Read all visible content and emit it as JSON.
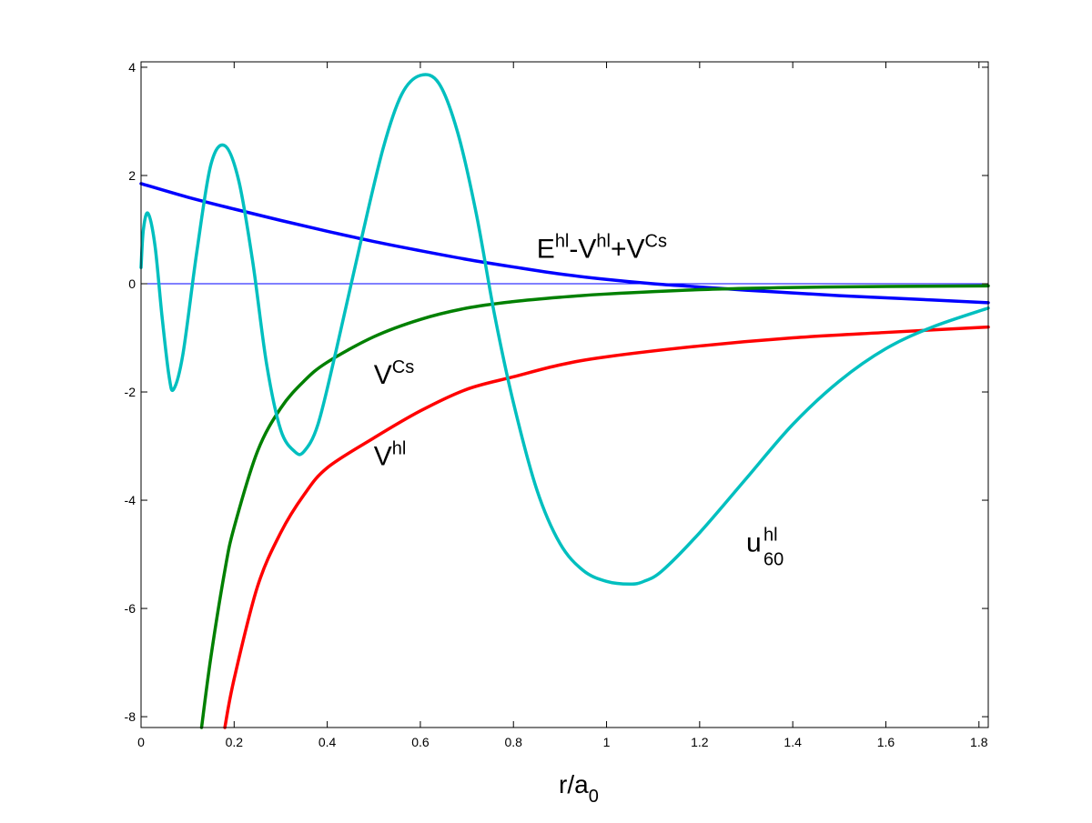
{
  "chart_data": {
    "type": "line",
    "title": "",
    "xlabel": "r/a",
    "xlabel_sub": "0",
    "ylabel": "",
    "xlim": [
      0,
      1.82
    ],
    "ylim": [
      -8.2,
      4.1
    ],
    "xticks": [
      0,
      0.2,
      0.4,
      0.6,
      0.8,
      1,
      1.2,
      1.4,
      1.6,
      1.8
    ],
    "xtick_labels": [
      "0",
      "0.2",
      "0.4",
      "0.6",
      "0.8",
      "1",
      "1.2",
      "1.4",
      "1.6",
      "1.8"
    ],
    "yticks": [
      -8,
      -6,
      -4,
      -2,
      0,
      2,
      4
    ],
    "ytick_labels": [
      "-8",
      "-6",
      "-4",
      "-2",
      "0",
      "2",
      "4"
    ],
    "grid": false,
    "legend": "none",
    "zero_line": {
      "y": 0,
      "color": "#0000ff"
    },
    "series": [
      {
        "key": "E_minus_V_plus_VCs",
        "color": "#0000ff",
        "x": [
          0,
          0.1,
          0.2,
          0.3,
          0.4,
          0.5,
          0.6,
          0.7,
          0.8,
          0.9,
          1.0,
          1.1,
          1.2,
          1.3,
          1.4,
          1.5,
          1.6,
          1.7,
          1.82
        ],
        "y": [
          1.85,
          1.6,
          1.38,
          1.17,
          0.97,
          0.78,
          0.61,
          0.45,
          0.31,
          0.18,
          0.08,
          0.0,
          -0.06,
          -0.12,
          -0.17,
          -0.22,
          -0.26,
          -0.3,
          -0.35
        ]
      },
      {
        "key": "V_Cs",
        "color": "#008000",
        "x": [
          0.13,
          0.15,
          0.18,
          0.2,
          0.25,
          0.3,
          0.35,
          0.4,
          0.5,
          0.6,
          0.7,
          0.8,
          0.9,
          1.0,
          1.2,
          1.4,
          1.6,
          1.82
        ],
        "y": [
          -8.2,
          -6.9,
          -5.3,
          -4.5,
          -3.1,
          -2.3,
          -1.8,
          -1.45,
          -0.98,
          -0.66,
          -0.45,
          -0.33,
          -0.25,
          -0.19,
          -0.11,
          -0.07,
          -0.05,
          -0.04
        ]
      },
      {
        "key": "V_hl",
        "color": "#ff0000",
        "x": [
          0.18,
          0.2,
          0.25,
          0.3,
          0.35,
          0.4,
          0.5,
          0.6,
          0.7,
          0.8,
          0.9,
          1.0,
          1.2,
          1.4,
          1.6,
          1.82
        ],
        "y": [
          -8.2,
          -7.3,
          -5.6,
          -4.6,
          -3.9,
          -3.4,
          -2.85,
          -2.35,
          -1.95,
          -1.72,
          -1.5,
          -1.35,
          -1.15,
          -1.0,
          -0.9,
          -0.8
        ]
      },
      {
        "key": "u60_hl",
        "color": "#00bfbf",
        "x": [
          0,
          0.005,
          0.015,
          0.03,
          0.045,
          0.06,
          0.07,
          0.09,
          0.12,
          0.15,
          0.18,
          0.21,
          0.24,
          0.27,
          0.3,
          0.33,
          0.35,
          0.38,
          0.42,
          0.47,
          0.52,
          0.56,
          0.6,
          0.64,
          0.68,
          0.72,
          0.76,
          0.8,
          0.85,
          0.9,
          0.95,
          1.0,
          1.05,
          1.08,
          1.12,
          1.2,
          1.3,
          1.4,
          1.5,
          1.6,
          1.7,
          1.82
        ],
        "y": [
          0.3,
          1.0,
          1.3,
          0.7,
          -0.6,
          -1.7,
          -1.95,
          -1.3,
          0.6,
          2.2,
          2.55,
          1.9,
          0.4,
          -1.5,
          -2.7,
          -3.1,
          -3.1,
          -2.6,
          -1.2,
          0.7,
          2.5,
          3.5,
          3.85,
          3.7,
          2.8,
          1.3,
          -0.6,
          -2.2,
          -3.8,
          -4.8,
          -5.3,
          -5.5,
          -5.55,
          -5.5,
          -5.3,
          -4.6,
          -3.6,
          -2.6,
          -1.8,
          -1.2,
          -0.8,
          -0.45
        ]
      }
    ],
    "annotations": [
      {
        "key": "lbl_E",
        "x": 0.85,
        "y": 0.48
      },
      {
        "key": "lbl_VCs",
        "x": 0.5,
        "y": -1.85
      },
      {
        "key": "lbl_Vhl",
        "x": 0.5,
        "y": -3.35
      },
      {
        "key": "lbl_u",
        "x": 1.3,
        "y": -4.95
      }
    ]
  },
  "labels": {
    "lbl_E": {
      "E": "E",
      "hl1": "hl",
      "minus": "-V",
      "hl2": "hl",
      "plus": "+V",
      "cs": "Cs"
    },
    "lbl_VCs": {
      "base": "V",
      "sup": "Cs"
    },
    "lbl_Vhl": {
      "base": "V",
      "sup": "hl"
    },
    "lbl_u": {
      "base": "u",
      "sup": "hl",
      "sub": "60"
    }
  }
}
